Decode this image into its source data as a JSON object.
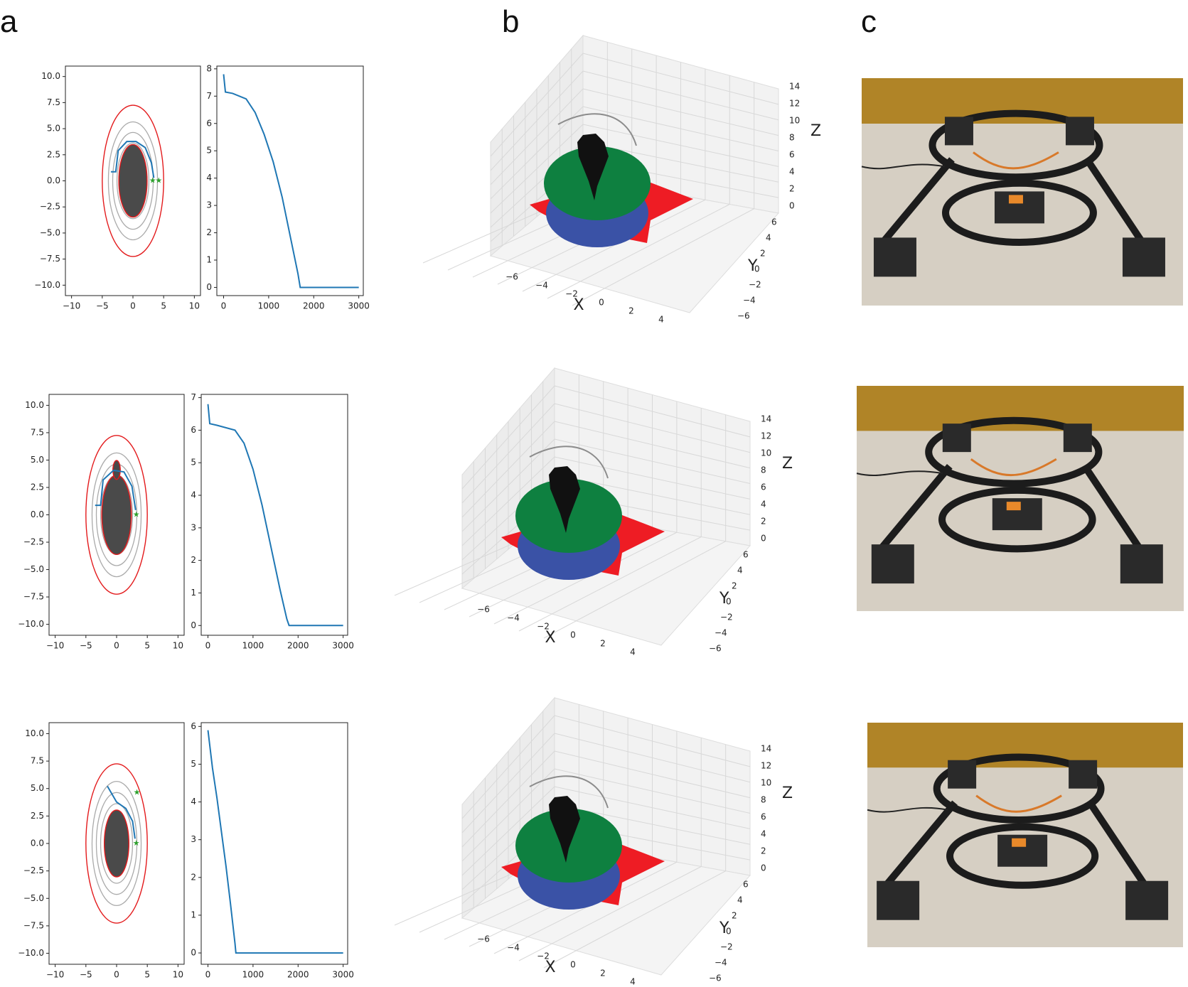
{
  "panel_labels": [
    "a",
    "b",
    "c"
  ],
  "colors": {
    "trajectory": "#1f77b4",
    "boundary": "#e31a1c",
    "level_set": "#aaaaaa",
    "obstacle": "#4a4a4a",
    "star": "#2ca02c",
    "green_disk": "#0e8040",
    "blue_disk": "#3a52a6",
    "red_shape": "#ee1c24",
    "gray_path": "#8c8c8c"
  },
  "chart_data": [
    {
      "type": "line",
      "plot": "phase-plane trajectory",
      "row": 1,
      "xlim": [
        -11,
        11
      ],
      "ylim": [
        -11,
        11
      ],
      "xticks": [
        "−10",
        "−5",
        "0",
        "5",
        "10"
      ],
      "yticks": [
        "10.0",
        "7.5",
        "5.0",
        "2.5",
        "0.0",
        "−2.5",
        "−5.0",
        "−7.5",
        "−10.0"
      ],
      "boundary_ellipse": {
        "cx": 0,
        "cy": 0,
        "rx": 5,
        "ry": 5
      },
      "level_sets": [
        {
          "rx": 4.0,
          "ry": 3.9
        },
        {
          "rx": 3.3,
          "ry": 3.2
        },
        {
          "rx": 2.6,
          "ry": 2.5
        }
      ],
      "obstacles": [
        {
          "cx": 0,
          "cy": 0,
          "rx": 2.3,
          "ry": 2.4
        }
      ],
      "trajectory": [
        [
          -3.6,
          0.6
        ],
        [
          -2.8,
          0.6
        ],
        [
          -2.4,
          2.0
        ],
        [
          -1.0,
          2.6
        ],
        [
          0.5,
          2.6
        ],
        [
          2.0,
          2.2
        ],
        [
          3.0,
          1.2
        ],
        [
          3.4,
          0.2
        ]
      ],
      "stars": [
        [
          3.2,
          0.0
        ],
        [
          4.2,
          0.0
        ]
      ]
    },
    {
      "type": "line",
      "plot": "value over iterations",
      "row": 1,
      "xlim": [
        -150,
        3100
      ],
      "ylim": [
        -0.3,
        8.1
      ],
      "xticks": [
        "0",
        "1000",
        "2000",
        "3000"
      ],
      "yticks": [
        "8",
        "7",
        "6",
        "5",
        "4",
        "3",
        "2",
        "1",
        "0"
      ],
      "x": [
        0,
        40,
        200,
        500,
        700,
        900,
        1100,
        1300,
        1500,
        1650,
        1700,
        2000,
        3000
      ],
      "y": [
        7.8,
        7.15,
        7.1,
        6.9,
        6.4,
        5.6,
        4.6,
        3.3,
        1.7,
        0.5,
        0.0,
        0.0,
        0.0
      ]
    },
    {
      "type": "line",
      "plot": "phase-plane trajectory",
      "row": 2,
      "xlim": [
        -11,
        11
      ],
      "ylim": [
        -11,
        11
      ],
      "xticks": [
        "−10",
        "−5",
        "0",
        "5",
        "10"
      ],
      "yticks": [
        "10.0",
        "7.5",
        "5.0",
        "2.5",
        "0.0",
        "−2.5",
        "−5.0",
        "−7.5",
        "−10.0"
      ],
      "boundary_ellipse": {
        "cx": 0,
        "cy": 0,
        "rx": 5,
        "ry": 5
      },
      "level_sets": [
        {
          "rx": 4.0,
          "ry": 3.9
        },
        {
          "rx": 3.3,
          "ry": 3.2
        },
        {
          "rx": 2.6,
          "ry": 2.5
        }
      ],
      "obstacles": [
        {
          "cx": 0,
          "cy": 0,
          "rx": 2.4,
          "ry": 2.5
        },
        {
          "cx": 0,
          "cy": 4.1,
          "rx": 0.6,
          "ry": 0.6
        }
      ],
      "trajectory": [
        [
          -3.5,
          0.6
        ],
        [
          -2.6,
          0.6
        ],
        [
          -2.2,
          2.2
        ],
        [
          -0.5,
          2.8
        ],
        [
          1.2,
          2.7
        ],
        [
          2.5,
          1.8
        ],
        [
          3.1,
          0.3
        ]
      ],
      "stars": [
        [
          3.2,
          0.0
        ]
      ]
    },
    {
      "type": "line",
      "plot": "value over iterations",
      "row": 2,
      "xlim": [
        -150,
        3100
      ],
      "ylim": [
        -0.3,
        7.1
      ],
      "xticks": [
        "0",
        "1000",
        "2000",
        "3000"
      ],
      "yticks": [
        "7",
        "6",
        "5",
        "4",
        "3",
        "2",
        "1",
        "0"
      ],
      "x": [
        0,
        40,
        200,
        600,
        800,
        1000,
        1200,
        1400,
        1600,
        1750,
        1800,
        2200,
        3000
      ],
      "y": [
        6.8,
        6.2,
        6.15,
        6.0,
        5.6,
        4.8,
        3.7,
        2.4,
        1.1,
        0.2,
        0.0,
        0.0,
        0.0
      ]
    },
    {
      "type": "line",
      "plot": "phase-plane trajectory",
      "row": 3,
      "xlim": [
        -11,
        11
      ],
      "ylim": [
        -11,
        11
      ],
      "xticks": [
        "−10",
        "−5",
        "0",
        "5",
        "10"
      ],
      "yticks": [
        "10.0",
        "7.5",
        "5.0",
        "2.5",
        "0.0",
        "−2.5",
        "−5.0",
        "−7.5",
        "−10.0"
      ],
      "boundary_ellipse": {
        "cx": 0,
        "cy": 0,
        "rx": 5,
        "ry": 5
      },
      "level_sets": [
        {
          "rx": 4.0,
          "ry": 3.9
        },
        {
          "rx": 3.3,
          "ry": 3.2
        },
        {
          "rx": 2.6,
          "ry": 2.5
        }
      ],
      "obstacles": [
        {
          "cx": 0,
          "cy": 0,
          "rx": 2.0,
          "ry": 2.1
        }
      ],
      "trajectory": [
        [
          -1.5,
          3.6
        ],
        [
          0.0,
          2.6
        ],
        [
          1.5,
          2.2
        ],
        [
          2.6,
          1.4
        ],
        [
          3.0,
          0.3
        ]
      ],
      "stars": [
        [
          3.3,
          3.2
        ],
        [
          3.2,
          0.0
        ]
      ]
    },
    {
      "type": "line",
      "plot": "value over iterations",
      "row": 3,
      "xlim": [
        -150,
        3100
      ],
      "ylim": [
        -0.3,
        6.1
      ],
      "xticks": [
        "0",
        "1000",
        "2000",
        "3000"
      ],
      "yticks": [
        "6",
        "5",
        "4",
        "3",
        "2",
        "1",
        "0"
      ],
      "x": [
        0,
        100,
        200,
        300,
        400,
        500,
        600,
        620,
        1000,
        2000,
        3000
      ],
      "y": [
        5.9,
        4.9,
        4.1,
        3.2,
        2.3,
        1.3,
        0.25,
        0.0,
        0.0,
        0.0,
        0.0
      ]
    }
  ],
  "plot3d": {
    "z_ticks": [
      "14",
      "12",
      "10",
      "8",
      "6",
      "4",
      "2",
      "0"
    ],
    "y_ticks": [
      "6",
      "4",
      "2",
      "0",
      "−2",
      "−4",
      "−6"
    ],
    "x_ticks": [
      "−6",
      "−4",
      "−2",
      "0",
      "2",
      "4"
    ],
    "axis_labels": {
      "x": "X",
      "y": "Y",
      "z": "Z"
    }
  },
  "photos": {
    "description_icon": "robot-photo-icon",
    "count": 3
  }
}
